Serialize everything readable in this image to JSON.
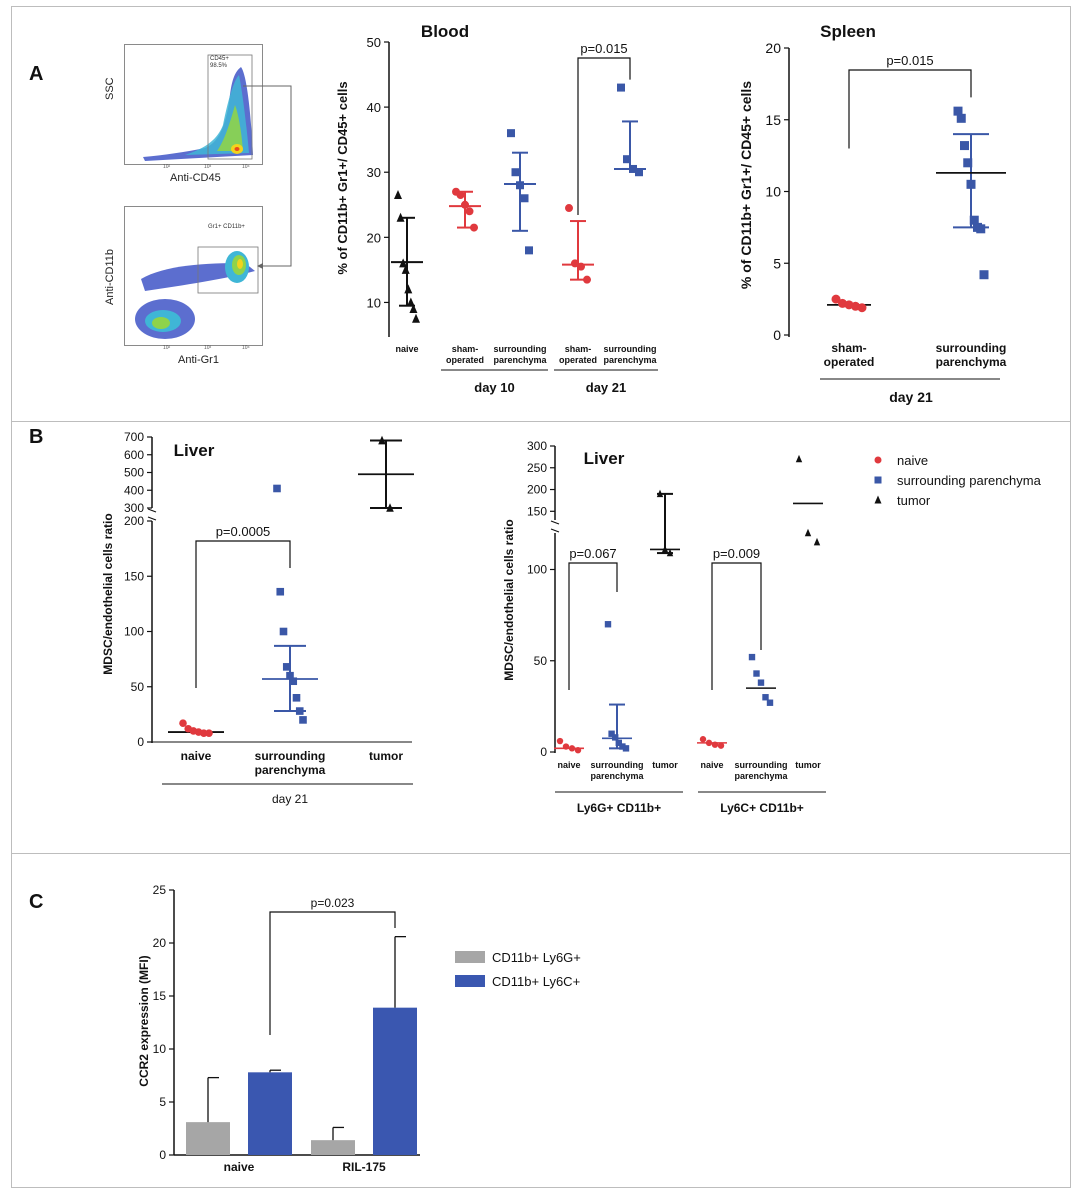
{
  "panel_labels": {
    "a": "A",
    "b": "B",
    "c": "C"
  },
  "flow": {
    "plot1": {
      "ylabel": "SSC",
      "xlabel": "Anti-CD45",
      "gate": "CD45+",
      "gate_pct": "98.5%"
    },
    "plot2": {
      "ylabel": "Anti-CD11b",
      "xlabel": "Anti-Gr1",
      "gate": "Gr1+ CD11b+"
    },
    "tick_labels": [
      "10²",
      "10³",
      "10⁴"
    ]
  },
  "chart_data": [
    {
      "id": "blood",
      "type": "scatter",
      "title": "Blood",
      "ylabel": "% of CD11b+ Gr1+/ CD45+ cells",
      "ylim": [
        5,
        50
      ],
      "yticks": [
        10,
        20,
        30,
        40,
        50
      ],
      "groups": [
        {
          "label": "naive",
          "color": "#111111",
          "marker": "triangle",
          "values": [
            26.5,
            23,
            16,
            15,
            12,
            10,
            9,
            7.5
          ],
          "mean": 16.2,
          "err_low": 9.5,
          "err_high": 23
        },
        {
          "label": "sham-\noperated",
          "color": "#e0393e",
          "marker": "circle",
          "values": [
            27,
            26.5,
            25,
            24,
            21.5
          ],
          "mean": 24.8,
          "err_low": 21.5,
          "err_high": 27
        },
        {
          "label": "surrounding\nparenchyma",
          "color": "#3a57a7",
          "marker": "square",
          "values": [
            36,
            30,
            28,
            26,
            18
          ],
          "mean": 28.2,
          "err_low": 21,
          "err_high": 33
        },
        {
          "label": "sham-\noperated",
          "color": "#e0393e",
          "marker": "circle",
          "values": [
            24.5,
            16,
            15.5,
            13.5
          ],
          "mean": 15.8,
          "err_low": 13.5,
          "err_high": 22.5
        },
        {
          "label": "surrounding\nparenchyma",
          "color": "#3a57a7",
          "marker": "square",
          "values": [
            43,
            32,
            30.5,
            30
          ],
          "mean": 30.5,
          "err_low": 30.5,
          "err_high": 37.8
        }
      ],
      "brackets": [
        {
          "from": 3,
          "to": 4,
          "label": "p=0.015"
        }
      ],
      "timepoints": [
        {
          "label": "day 10",
          "groups": [
            1,
            2
          ]
        },
        {
          "label": "day 21",
          "groups": [
            3,
            4
          ]
        }
      ]
    },
    {
      "id": "spleen",
      "type": "scatter",
      "title": "Spleen",
      "ylabel": "% of CD11b+ Gr1+/ CD45+ cells",
      "ylim": [
        0,
        20
      ],
      "yticks": [
        0,
        5,
        10,
        15,
        20
      ],
      "groups": [
        {
          "label": "sham-\noperated",
          "color": "#e0393e",
          "marker": "circle",
          "values": [
            2.5,
            2.2,
            2.1,
            2.0,
            1.9
          ],
          "mean": 2.1,
          "err_low": 1.9,
          "err_high": 2.3
        },
        {
          "label": "surrounding\nparenchyma",
          "color": "#3a57a7",
          "marker": "square",
          "values": [
            15.6,
            15.1,
            13.2,
            12.0,
            10.5,
            8.0,
            7.5,
            7.4,
            4.2
          ],
          "mean": 11.3,
          "err_low": 7.5,
          "err_high": 14
        }
      ],
      "brackets": [
        {
          "from": 0,
          "to": 1,
          "label": "p=0.015"
        }
      ],
      "timepoints": [
        {
          "label": "day 21",
          "groups": [
            0,
            1
          ]
        }
      ]
    },
    {
      "id": "liver1",
      "type": "scatter",
      "title": "Liver",
      "ylabel": "MDSC/endothelial cells ratio",
      "lower_range": [
        0,
        200
      ],
      "lower_ticks": [
        0,
        50,
        100,
        150,
        200
      ],
      "upper_range": [
        300,
        700
      ],
      "upper_ticks": [
        300,
        400,
        500,
        600,
        700
      ],
      "groups": [
        {
          "label": "naive",
          "color": "#e0393e",
          "marker": "circle",
          "values": [
            17,
            12,
            10,
            9,
            8,
            8
          ],
          "mean": 9
        },
        {
          "label": "surrounding\nparenchyma",
          "color": "#3a57a7",
          "marker": "square",
          "values": [
            410,
            136,
            100,
            68,
            60,
            55,
            40,
            28,
            20
          ],
          "mean": 57,
          "err_low": 28,
          "err_high": 87
        },
        {
          "label": "tumor",
          "color": "#111111",
          "marker": "triangle",
          "values": [
            680,
            300
          ],
          "mean": 490,
          "err_low": 300,
          "err_high": 680
        }
      ],
      "brackets": [
        {
          "from": 0,
          "to": 1,
          "label": "p=0.0005"
        }
      ],
      "timepoints": [
        {
          "label": "day 21",
          "groups": [
            0,
            1,
            2
          ]
        }
      ]
    },
    {
      "id": "liver2",
      "type": "scatter",
      "title": "Liver",
      "ylabel": "MDSC/endothelial cells ratio",
      "lower_range": [
        0,
        120
      ],
      "lower_ticks": [
        0,
        50,
        100
      ],
      "upper_range": [
        130,
        300
      ],
      "upper_ticks": [
        150,
        200,
        250,
        300
      ],
      "groups": [
        {
          "label": "naive",
          "color": "#e0393e",
          "marker": "circle",
          "values": [
            6,
            3,
            2,
            1
          ],
          "mean": 2
        },
        {
          "label": "surrounding\nparenchyma",
          "color": "#3a57a7",
          "marker": "square",
          "values": [
            70,
            10,
            8,
            5,
            3,
            2
          ],
          "mean": 7.5,
          "err_low": 2,
          "err_high": 26
        },
        {
          "label": "tumor",
          "color": "#111111",
          "marker": "triangle",
          "values": [
            190,
            111,
            109
          ],
          "mean": 111,
          "err_low": 109,
          "err_high": 190
        },
        {
          "label": "naive",
          "color": "#e0393e",
          "marker": "circle",
          "values": [
            7,
            5,
            4,
            3.5
          ],
          "mean": 5
        },
        {
          "label": "surrounding\nparenchyma",
          "color": "#3a57a7",
          "marker": "square",
          "values": [
            52,
            43,
            38,
            30,
            27
          ],
          "mean": 35
        },
        {
          "label": "tumor",
          "color": "#111111",
          "marker": "triangle",
          "values": [
            270,
            120,
            115
          ],
          "mean": 168
        }
      ],
      "brackets": [
        {
          "from": 0,
          "to": 1,
          "label": "p=0.067"
        },
        {
          "from": 3,
          "to": 4,
          "label": "p=0.009"
        }
      ],
      "timepoints": [
        {
          "label": "Ly6G+ CD11b+",
          "groups": [
            0,
            1,
            2
          ]
        },
        {
          "label": "Ly6C+ CD11b+",
          "groups": [
            3,
            4,
            5
          ]
        }
      ]
    },
    {
      "id": "ccr2",
      "type": "bar",
      "ylabel": "CCR2 expression (MFI)",
      "ylim": [
        0,
        25
      ],
      "yticks": [
        0,
        5,
        10,
        15,
        20,
        25
      ],
      "categories": [
        "naive",
        "RIL-175"
      ],
      "series": [
        {
          "name": "CD11b+ Ly6G+",
          "color": "#a6a6a6",
          "values": [
            3.1,
            1.4
          ],
          "errors": [
            4.2,
            1.2
          ]
        },
        {
          "name": "CD11b+ Ly6C+",
          "color": "#3a57b0",
          "values": [
            7.8,
            13.9
          ],
          "errors": [
            0.2,
            6.7
          ]
        }
      ],
      "brackets": [
        {
          "label": "p=0.023"
        }
      ]
    }
  ],
  "legend_b": [
    {
      "label": "naive",
      "color": "#e0393e",
      "marker": "circle"
    },
    {
      "label": "surrounding parenchyma",
      "color": "#3a57a7",
      "marker": "square"
    },
    {
      "label": "tumor",
      "color": "#111111",
      "marker": "triangle"
    }
  ]
}
